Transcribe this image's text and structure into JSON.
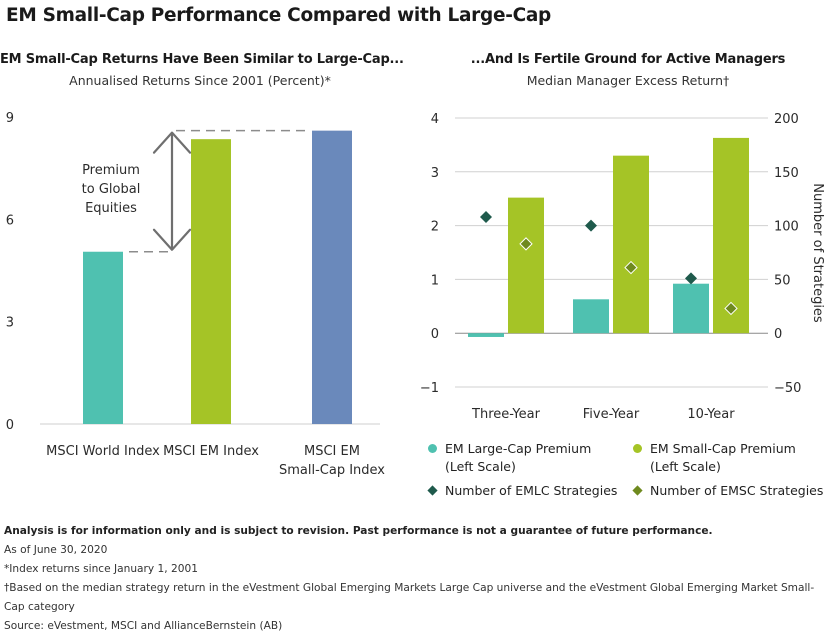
{
  "title": "EM Small-Cap Performance Compared with Large-Cap",
  "left_panel": {
    "title": "EM Small-Cap Returns Have Been Similar to Large-Cap...",
    "subtitle": "Annualised Returns Since 2001 (Percent)*",
    "annotation_lines": [
      "Premium",
      "to Global",
      "Equities"
    ]
  },
  "right_panel": {
    "title": "...And Is Fertile Ground for Active Managers",
    "subtitle": "Median Manager Excess Return†",
    "right_axis_label": "Number of Strategies"
  },
  "legend": [
    {
      "label_lines": [
        "EM Large-Cap Premium",
        "(Left Scale)"
      ],
      "shape": "circle",
      "color": "#4fc1b0"
    },
    {
      "label_lines": [
        "EM Small-Cap Premium",
        "(Left Scale)"
      ],
      "shape": "circle",
      "color": "#a5c426"
    },
    {
      "label_lines": [
        "Number of EMLC Strategies"
      ],
      "shape": "diamond",
      "color": "#1f5a4c"
    },
    {
      "label_lines": [
        "Number of EMSC Strategies"
      ],
      "shape": "diamond",
      "color": "#6f8a1f"
    }
  ],
  "notes": {
    "disclaimer": "Analysis is for information only and is subject to revision. Past performance is not a guarantee of future performance.",
    "as_of": "As of June 30, 2020",
    "footnote_star": "*Index returns since January 1, 2001",
    "footnote_dagger": "†Based on the median strategy return in the eVestment Global Emerging Markets Large Cap universe and the eVestment Global Emerging Market Small-Cap category",
    "source": "Source: eVestment, MSCI and AllianceBernstein (AB)"
  },
  "chart_data": [
    {
      "type": "bar",
      "title": "EM Small-Cap Returns Have Been Similar to Large-Cap...",
      "subtitle": "Annualised Returns Since 2001 (Percent)*",
      "categories": [
        [
          "MSCI World Index"
        ],
        [
          "MSCI EM Index"
        ],
        [
          "MSCI EM",
          "Small-Cap Index"
        ]
      ],
      "values": [
        5.05,
        8.35,
        8.6
      ],
      "colors": [
        "#4fc1b0",
        "#a5c426",
        "#6a89bb"
      ],
      "ylim": [
        0,
        9
      ],
      "yticks": [
        0,
        3,
        6,
        9
      ],
      "grid": false
    },
    {
      "type": "bar",
      "title": "...And Is Fertile Ground for Active Managers",
      "subtitle": "Median Manager Excess Return†",
      "categories": [
        "Three-Year",
        "Five-Year",
        "10-Year"
      ],
      "series": [
        {
          "name": "EM Large-Cap Premium (Left Scale)",
          "axis": "left",
          "kind": "bar",
          "color": "#4fc1b0",
          "values": [
            -0.07,
            0.63,
            0.92
          ]
        },
        {
          "name": "EM Small-Cap Premium (Left Scale)",
          "axis": "left",
          "kind": "bar",
          "color": "#a5c426",
          "values": [
            2.52,
            3.3,
            3.63
          ]
        },
        {
          "name": "Number of EMLC Strategies",
          "axis": "right",
          "kind": "diamond",
          "color": "#1f5a4c",
          "values": [
            108,
            100,
            51
          ]
        },
        {
          "name": "Number of EMSC Strategies",
          "axis": "right",
          "kind": "diamond",
          "color": "#6f8a1f",
          "values": [
            83,
            61,
            23
          ]
        }
      ],
      "ylim_left": [
        -1,
        4
      ],
      "yticks_left": [
        -1,
        0,
        1,
        2,
        3,
        4
      ],
      "ylim_right": [
        -50,
        200
      ],
      "yticks_right": [
        -50,
        0,
        50,
        100,
        150,
        200
      ],
      "ylabel_right": "Number of Strategies",
      "grid": true
    }
  ]
}
